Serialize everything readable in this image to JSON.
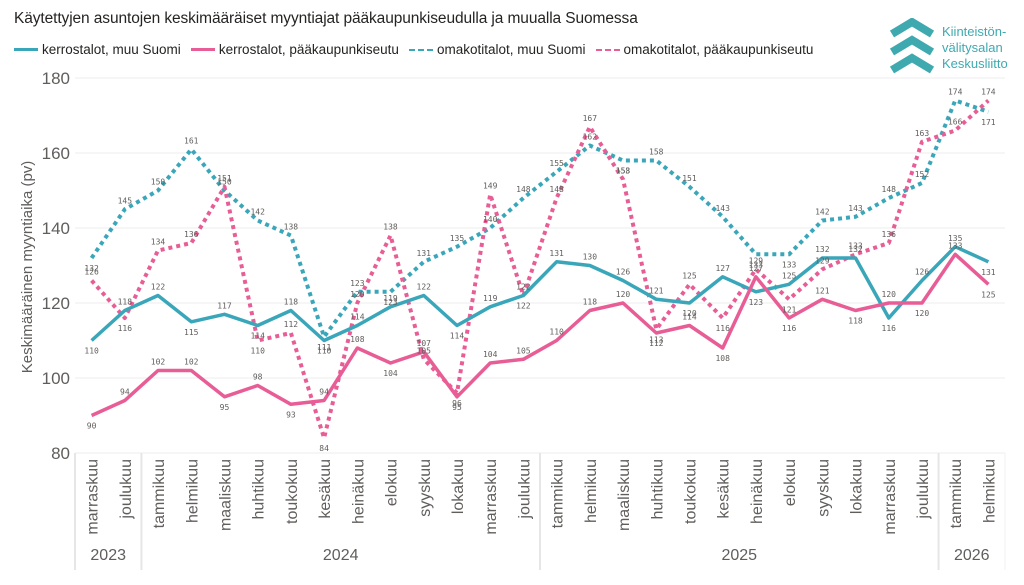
{
  "header": {
    "title": "Käytettyjen asuntojen keskimääräiset myyntiajat pääkaupunkiseudulla ja muualla Suomessa"
  },
  "logo": {
    "icon": "chevron-stack-icon",
    "lines": [
      "Kiinteistön-",
      "välitysalan",
      "Keskusliitto"
    ],
    "color": "#3eaab0"
  },
  "chart_data": {
    "type": "line",
    "title": "Käytettyjen asuntojen keskimääräiset myyntiajat pääkaupunkiseudulla ja muualla Suomessa",
    "xlabel": "",
    "ylabel": "Keskimääräinen myyntiaika (pv)",
    "ylim": [
      80,
      180
    ],
    "yticks": [
      80,
      100,
      120,
      140,
      160,
      180
    ],
    "grid": true,
    "legend_position": "top-left",
    "categories": [
      "marraskuu",
      "joulukuu",
      "tammikuu",
      "helmikuu",
      "maaliskuu",
      "huhtikuu",
      "toukokuu",
      "kesäkuu",
      "heinäkuu",
      "elokuu",
      "syyskuu",
      "lokakuu",
      "marraskuu",
      "joulukuu",
      "tammikuu",
      "helmikuu",
      "maaliskuu",
      "huhtikuu",
      "toukokuu",
      "kesäkuu",
      "heinäkuu",
      "elokuu",
      "syyskuu",
      "lokakuu",
      "marraskuu",
      "joulukuu",
      "tammikuu",
      "helmikuu"
    ],
    "year_groups": [
      {
        "label": "2023",
        "start": 0,
        "end": 1
      },
      {
        "label": "2024",
        "start": 2,
        "end": 13
      },
      {
        "label": "2025",
        "start": 14,
        "end": 25
      },
      {
        "label": "2026",
        "start": 26,
        "end": 27
      }
    ],
    "series": [
      {
        "name": "kerrostalot, muu Suomi",
        "color": "#3aa6b9",
        "style": "solid",
        "values": [
          110,
          118,
          122,
          115,
          117,
          114,
          118,
          110,
          114,
          119,
          122,
          114,
          119,
          122,
          131,
          130,
          126,
          121,
          120,
          127,
          123,
          125,
          132,
          132,
          116,
          126,
          135,
          131
        ]
      },
      {
        "name": "kerrostalot, pääkaupunkiseutu",
        "color": "#e85d95",
        "style": "solid",
        "values": [
          90,
          94,
          102,
          102,
          95,
          98,
          93,
          94,
          108,
          104,
          107,
          95,
          104,
          105,
          110,
          118,
          120,
          112,
          114,
          108,
          127,
          116,
          121,
          118,
          120,
          120,
          133,
          125
        ]
      },
      {
        "name": "omakotitalot, muu Suomi",
        "color": "#3aa6b9",
        "style": "dotted",
        "values": [
          132,
          145,
          150,
          161,
          150,
          142,
          138,
          111,
          123,
          123,
          131,
          135,
          140,
          148,
          155,
          162,
          158,
          158,
          151,
          143,
          133,
          133,
          142,
          143,
          148,
          152,
          174,
          171
        ]
      },
      {
        "name": "omakotitalot, pääkaupunkiseutu",
        "color": "#e85d95",
        "style": "dotted",
        "values": [
          126,
          116,
          134,
          136,
          151,
          110,
          112,
          84,
          120,
          138,
          105,
          96,
          149,
          122,
          148,
          167,
          153,
          113,
          125,
          116,
          129,
          121,
          129,
          133,
          136,
          163,
          166,
          174
        ]
      }
    ]
  }
}
